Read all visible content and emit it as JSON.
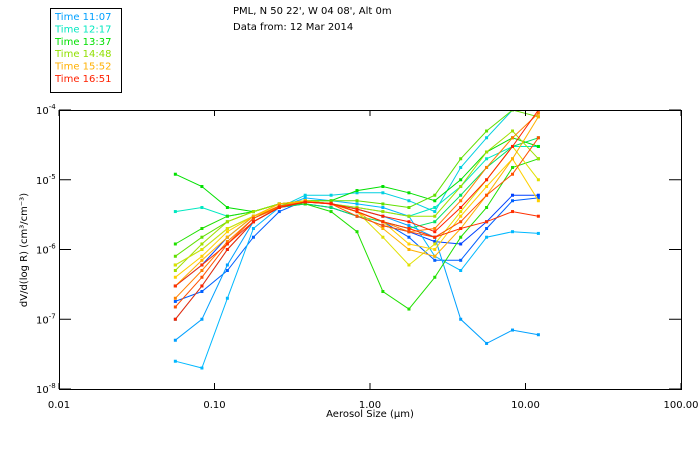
{
  "title": {
    "line1": "PML, N 50 22', W 04 08', Alt 0m",
    "line2": "Data from: 12 Mar 2014"
  },
  "legend": [
    {
      "label": "Time 11:07",
      "color": "#00a0ff"
    },
    {
      "label": "Time 12:17",
      "color": "#00e8c0"
    },
    {
      "label": "Time 13:37",
      "color": "#00e000"
    },
    {
      "label": "Time 14:48",
      "color": "#90e000"
    },
    {
      "label": "Time 15:52",
      "color": "#ffb000"
    },
    {
      "label": "Time 16:51",
      "color": "#ff2000"
    }
  ],
  "chart_data": {
    "type": "line",
    "xscale": "log",
    "yscale": "log",
    "xlabel": "Aerosol Size (µm)",
    "ylabel": "dV/d(log R) (cm³/cm⁻³)",
    "xlim": [
      0.01,
      100
    ],
    "ylim": [
      1e-08,
      0.0001
    ],
    "xticks": [
      "0.01",
      "0.10",
      "1.00",
      "10.00",
      "100.00"
    ],
    "yticks": [
      {
        "base": "10",
        "exp": "-4"
      },
      {
        "base": "10",
        "exp": "-5"
      },
      {
        "base": "10",
        "exp": "-6"
      },
      {
        "base": "10",
        "exp": "-7"
      },
      {
        "base": "10",
        "exp": "-8"
      }
    ],
    "grid": false,
    "x": [
      0.056,
      0.083,
      0.121,
      0.178,
      0.261,
      0.383,
      0.562,
      0.825,
      1.21,
      1.78,
      2.61,
      3.83,
      5.62,
      8.25,
      12.1
    ],
    "series": [
      {
        "color": "#0040ff",
        "values": [
          3e-07,
          6e-07,
          1.5e-06,
          3e-06,
          4e-06,
          4.5e-06,
          4e-06,
          3e-06,
          2.2e-06,
          1.8e-06,
          1.3e-06,
          1.2e-06,
          2.5e-06,
          6e-06,
          6e-06
        ]
      },
      {
        "color": "#0060ff",
        "values": [
          1.8e-07,
          2.5e-07,
          5e-07,
          1.5e-06,
          3.5e-06,
          5e-06,
          4.5e-06,
          3.5e-06,
          2.5e-06,
          1.5e-06,
          7e-07,
          7e-07,
          2e-06,
          5e-06,
          5.5e-06
        ]
      },
      {
        "color": "#00a0ff",
        "values": [
          5e-08,
          1e-07,
          6e-07,
          2.5e-06,
          4e-06,
          5e-06,
          4.5e-06,
          3.8e-06,
          3e-06,
          2.2e-06,
          1.5e-06,
          1e-07,
          4.5e-08,
          7e-08,
          6e-08
        ]
      },
      {
        "color": "#00b8ff",
        "values": [
          2.5e-08,
          2e-08,
          2e-07,
          2e-06,
          4e-06,
          5.5e-06,
          5e-06,
          4.5e-06,
          4e-06,
          3e-06,
          8e-07,
          5e-07,
          1.5e-06,
          1.8e-06,
          1.7e-06
        ]
      },
      {
        "color": "#00d0e0",
        "values": [
          1e-07,
          3e-07,
          1e-06,
          2.5e-06,
          4e-06,
          6e-06,
          6e-06,
          6.5e-06,
          6.5e-06,
          5e-06,
          3.5e-06,
          1.5e-05,
          4e-05,
          0.0001,
          0.00012
        ]
      },
      {
        "color": "#00e8c0",
        "values": [
          3.5e-06,
          4e-06,
          3e-06,
          3.5e-06,
          4.5e-06,
          5e-06,
          4.5e-06,
          4e-06,
          3.5e-06,
          3e-06,
          4e-06,
          8e-06,
          2e-05,
          3e-05,
          3e-05
        ]
      },
      {
        "color": "#00e060",
        "values": [
          6e-07,
          1e-06,
          2e-06,
          3e-06,
          4e-06,
          4.5e-06,
          4e-06,
          3e-06,
          2.5e-06,
          2e-06,
          2.5e-06,
          6e-06,
          1.5e-05,
          3e-05,
          4e-05
        ]
      },
      {
        "color": "#00e000",
        "values": [
          1.2e-05,
          8e-06,
          4e-06,
          3.5e-06,
          4.5e-06,
          5e-06,
          5e-06,
          7e-06,
          8e-06,
          6.5e-06,
          5e-06,
          1e-05,
          2.5e-05,
          4e-05,
          3e-05
        ]
      },
      {
        "color": "#20e000",
        "values": [
          1.2e-06,
          2e-06,
          3e-06,
          3.5e-06,
          4.5e-06,
          4.5e-06,
          3.5e-06,
          1.8e-06,
          2.5e-07,
          1.4e-07,
          4e-07,
          1.5e-06,
          4e-06,
          1.5e-05,
          2e-05
        ]
      },
      {
        "color": "#60e000",
        "values": [
          8e-07,
          1.5e-06,
          2.5e-06,
          3.5e-06,
          4.5e-06,
          5e-06,
          5e-06,
          5e-06,
          4.5e-06,
          4e-06,
          6e-06,
          2e-05,
          5e-05,
          0.0001,
          8e-05
        ]
      },
      {
        "color": "#a0e000",
        "values": [
          5e-07,
          1.2e-06,
          2.5e-06,
          3.5e-06,
          4.5e-06,
          5e-06,
          4.5e-06,
          4e-06,
          3.5e-06,
          3e-06,
          3e-06,
          8e-06,
          2.5e-05,
          5e-05,
          2e-05
        ]
      },
      {
        "color": "#e0e000",
        "values": [
          6e-07,
          1e-06,
          2e-06,
          3e-06,
          4e-06,
          5e-06,
          4.5e-06,
          3.5e-06,
          1.5e-06,
          6e-07,
          1.2e-06,
          3.5e-06,
          1e-05,
          3e-05,
          1e-05
        ]
      },
      {
        "color": "#ffd000",
        "values": [
          4e-07,
          8e-07,
          1.8e-06,
          3e-06,
          4.2e-06,
          5e-06,
          4.5e-06,
          3.5e-06,
          2.5e-06,
          1.2e-06,
          1e-06,
          3e-06,
          8e-06,
          2e-05,
          5e-06
        ]
      },
      {
        "color": "#ffb000",
        "values": [
          3e-07,
          7e-07,
          1.5e-06,
          3e-06,
          4.5e-06,
          5e-06,
          4.5e-06,
          3.5e-06,
          2e-06,
          1e-06,
          8e-07,
          2e-06,
          6e-06,
          2e-05,
          8e-05
        ]
      },
      {
        "color": "#ff8000",
        "values": [
          2e-07,
          5e-07,
          1.3e-06,
          2.8e-06,
          4e-06,
          4.8e-06,
          4.5e-06,
          3.5e-06,
          2.5e-06,
          1.8e-06,
          2e-06,
          5e-06,
          1.5e-05,
          4e-05,
          9e-05
        ]
      },
      {
        "color": "#ff5000",
        "values": [
          1.5e-07,
          4e-07,
          1.2e-06,
          2.8e-06,
          4.2e-06,
          4.8e-06,
          4.5e-06,
          3e-06,
          2.2e-06,
          1.8e-06,
          1.5e-06,
          2.5e-06,
          6e-06,
          1.2e-05,
          4e-05
        ]
      },
      {
        "color": "#ff3000",
        "values": [
          3e-07,
          6e-07,
          1.2e-06,
          2.5e-06,
          4e-06,
          4.8e-06,
          4.6e-06,
          3.5e-06,
          2.5e-06,
          2e-06,
          1.5e-06,
          2e-06,
          2.5e-06,
          3.5e-06,
          3e-06
        ]
      },
      {
        "color": "#ff2000",
        "values": [
          1e-07,
          3e-07,
          1e-06,
          2.5e-06,
          4e-06,
          4.8e-06,
          4.5e-06,
          3.8e-06,
          3e-06,
          2.5e-06,
          1.8e-06,
          4e-06,
          1e-05,
          3e-05,
          0.0001
        ]
      }
    ]
  }
}
